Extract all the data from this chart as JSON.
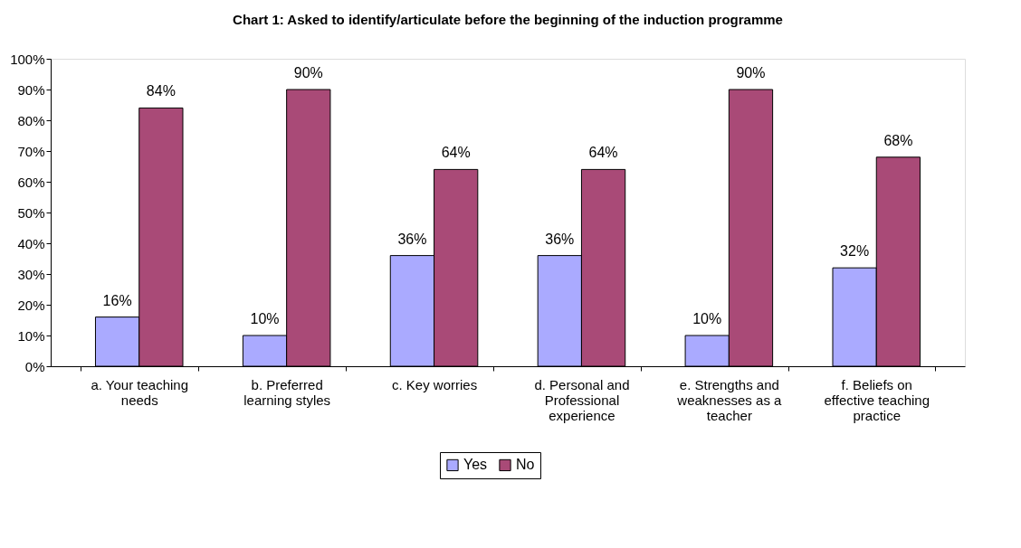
{
  "chart_data": {
    "type": "bar",
    "title": "Chart 1: Asked to identify/articulate before the beginning of the induction programme",
    "categories": [
      "a. Your teaching needs",
      "b. Preferred learning styles",
      "c. Key worries",
      "d. Personal and Professional experience",
      "e. Strengths and weaknesses as a teacher",
      "f. Beliefs on effective teaching practice"
    ],
    "series": [
      {
        "name": "Yes",
        "color": "#aaaaff",
        "values": [
          16,
          10,
          36,
          36,
          10,
          32
        ],
        "value_labels": [
          "16%",
          "10%",
          "36%",
          "36%",
          "10%",
          "32%"
        ]
      },
      {
        "name": "No",
        "color": "#a94a77",
        "values": [
          84,
          90,
          64,
          64,
          90,
          68
        ],
        "value_labels": [
          "84%",
          "90%",
          "64%",
          "64%",
          "90%",
          "68%"
        ]
      }
    ],
    "ylim": [
      0,
      100
    ],
    "yticks": [
      {
        "value": 0,
        "label": "0%"
      },
      {
        "value": 10,
        "label": "10%"
      },
      {
        "value": 20,
        "label": "20%"
      },
      {
        "value": 30,
        "label": "30%"
      },
      {
        "value": 40,
        "label": "40%"
      },
      {
        "value": 50,
        "label": "50%"
      },
      {
        "value": 60,
        "label": "60%"
      },
      {
        "value": 70,
        "label": "70%"
      },
      {
        "value": 80,
        "label": "80%"
      },
      {
        "value": 90,
        "label": "90%"
      },
      {
        "value": 100,
        "label": "100%"
      }
    ],
    "grid": false,
    "legend": "bottom"
  }
}
